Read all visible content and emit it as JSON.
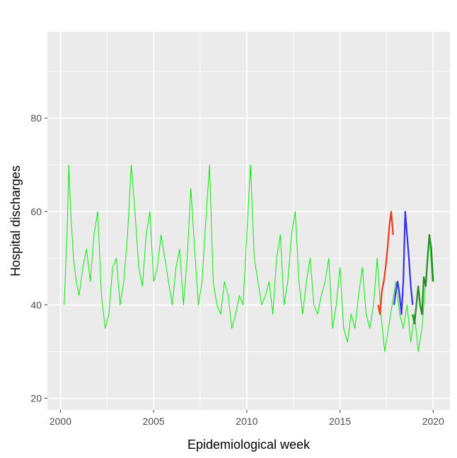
{
  "chart_data": {
    "type": "line",
    "xlabel": "Epidemiological week",
    "ylabel": "Hospital discharges",
    "xlim": [
      1999.3,
      2020.9
    ],
    "ylim": [
      17.5,
      98.5
    ],
    "x_ticks": [
      2000,
      2005,
      2010,
      2015,
      2020
    ],
    "x_tick_labels": [
      "2000",
      "2005",
      "2010",
      "2015",
      "2020"
    ],
    "y_ticks": [
      20,
      40,
      60,
      80
    ],
    "y_tick_labels": [
      "20",
      "40",
      "60",
      "80"
    ],
    "grid": true,
    "legend": "none",
    "colors": {
      "panel_bg": "#ebebeb",
      "grid": "#ffffff",
      "observed": "#00ee00",
      "forecast_2017": "#ee3a1a",
      "forecast_2018": "#3333ee",
      "forecast_2019": "#228b22"
    },
    "series": [
      {
        "color": "#00ee00",
        "x": [
          2000.2,
          2000.35,
          2000.45,
          2000.55,
          2000.7,
          2000.85,
          2001.0,
          2001.2,
          2001.4,
          2001.6,
          2001.8,
          2002.0,
          2002.2,
          2002.4,
          2002.6,
          2002.8,
          2003.0,
          2003.2,
          2003.4,
          2003.6,
          2003.8,
          2004.0,
          2004.2,
          2004.4,
          2004.6,
          2004.8,
          2005.0,
          2005.2,
          2005.4,
          2005.6,
          2005.8,
          2006.0,
          2006.2,
          2006.4,
          2006.6,
          2006.8,
          2007.0,
          2007.2,
          2007.4,
          2007.6,
          2007.8,
          2008.0,
          2008.2,
          2008.4,
          2008.6,
          2008.8,
          2009.0,
          2009.2,
          2009.4,
          2009.6,
          2009.8,
          2010.0,
          2010.2,
          2010.4,
          2010.6,
          2010.8,
          2011.0,
          2011.2,
          2011.4,
          2011.6,
          2011.8,
          2012.0,
          2012.2,
          2012.4,
          2012.6,
          2012.8,
          2013.0,
          2013.2,
          2013.4,
          2013.6,
          2013.8,
          2014.0,
          2014.2,
          2014.4,
          2014.6,
          2014.8,
          2015.0,
          2015.2,
          2015.4,
          2015.6,
          2015.8,
          2016.0,
          2016.2,
          2016.4,
          2016.6,
          2016.8,
          2017.0,
          2017.2,
          2017.4,
          2017.6,
          2017.8,
          2018.0,
          2018.2,
          2018.4,
          2018.6,
          2018.8,
          2019.0,
          2019.2,
          2019.4,
          2019.6,
          2019.8,
          2019.95
        ],
        "y": [
          40,
          55,
          70,
          60,
          50,
          45,
          42,
          48,
          52,
          45,
          55,
          60,
          42,
          35,
          38,
          48,
          50,
          40,
          45,
          55,
          70,
          60,
          48,
          44,
          55,
          60,
          45,
          48,
          55,
          50,
          45,
          40,
          48,
          52,
          40,
          50,
          65,
          52,
          40,
          45,
          58,
          70,
          45,
          40,
          38,
          45,
          42,
          35,
          38,
          42,
          40,
          55,
          70,
          50,
          45,
          40,
          42,
          45,
          38,
          50,
          55,
          40,
          45,
          55,
          60,
          45,
          38,
          45,
          50,
          40,
          38,
          42,
          45,
          50,
          35,
          40,
          48,
          35,
          32,
          38,
          35,
          42,
          48,
          38,
          35,
          40,
          50,
          38,
          30,
          35,
          40,
          45,
          38,
          35,
          40,
          32,
          38,
          30,
          35,
          45,
          55,
          45
        ]
      },
      {
        "color": "#ee3a1a",
        "x": [
          2017.05,
          2017.15,
          2017.25,
          2017.35,
          2017.45,
          2017.55,
          2017.65,
          2017.75,
          2017.85
        ],
        "y": [
          40,
          38,
          43,
          45,
          48,
          52,
          57,
          60,
          55
        ]
      },
      {
        "color": "#3333ee",
        "x": [
          2017.9,
          2018.0,
          2018.1,
          2018.2,
          2018.3,
          2018.4,
          2018.5,
          2018.6,
          2018.7,
          2018.8,
          2018.9
        ],
        "y": [
          40,
          43,
          45,
          42,
          38,
          45,
          60,
          55,
          50,
          44,
          40
        ]
      },
      {
        "color": "#228b22",
        "x": [
          2018.9,
          2019.0,
          2019.1,
          2019.2,
          2019.3,
          2019.4,
          2019.5,
          2019.6,
          2019.7,
          2019.8,
          2019.9,
          2020.0
        ],
        "y": [
          38,
          36,
          40,
          44,
          40,
          38,
          46,
          44,
          50,
          55,
          52,
          45
        ]
      }
    ]
  }
}
